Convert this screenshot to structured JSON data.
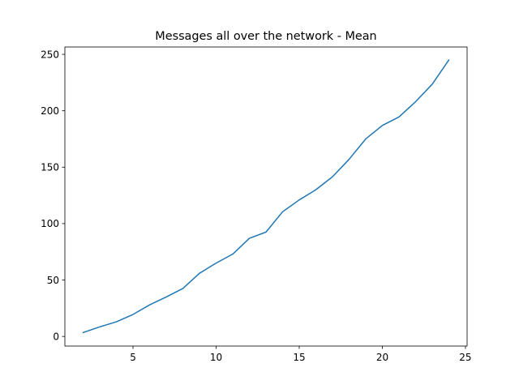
{
  "chart_data": {
    "type": "line",
    "title": "Messages all over the network - Mean",
    "xlabel": "",
    "ylabel": "",
    "xlim": [
      0.9,
      25.1
    ],
    "ylim": [
      -8.5,
      256.5
    ],
    "xticks": [
      5,
      10,
      15,
      20,
      25
    ],
    "yticks": [
      0,
      50,
      100,
      150,
      200,
      250
    ],
    "grid": false,
    "legend": "none",
    "series": [
      {
        "color": "#1f77b4",
        "x": [
          2,
          3,
          4,
          5,
          6,
          7,
          8,
          9,
          10,
          11,
          12,
          13,
          14,
          15,
          16,
          17,
          18,
          19,
          20,
          21,
          22,
          23,
          24
        ],
        "y": [
          3.5,
          8.5,
          13,
          19.5,
          28,
          35,
          42.5,
          56,
          65,
          73,
          87,
          92.5,
          110.5,
          121,
          130,
          141.5,
          157,
          175,
          187,
          194.5,
          208,
          223.5,
          245
        ]
      }
    ]
  }
}
